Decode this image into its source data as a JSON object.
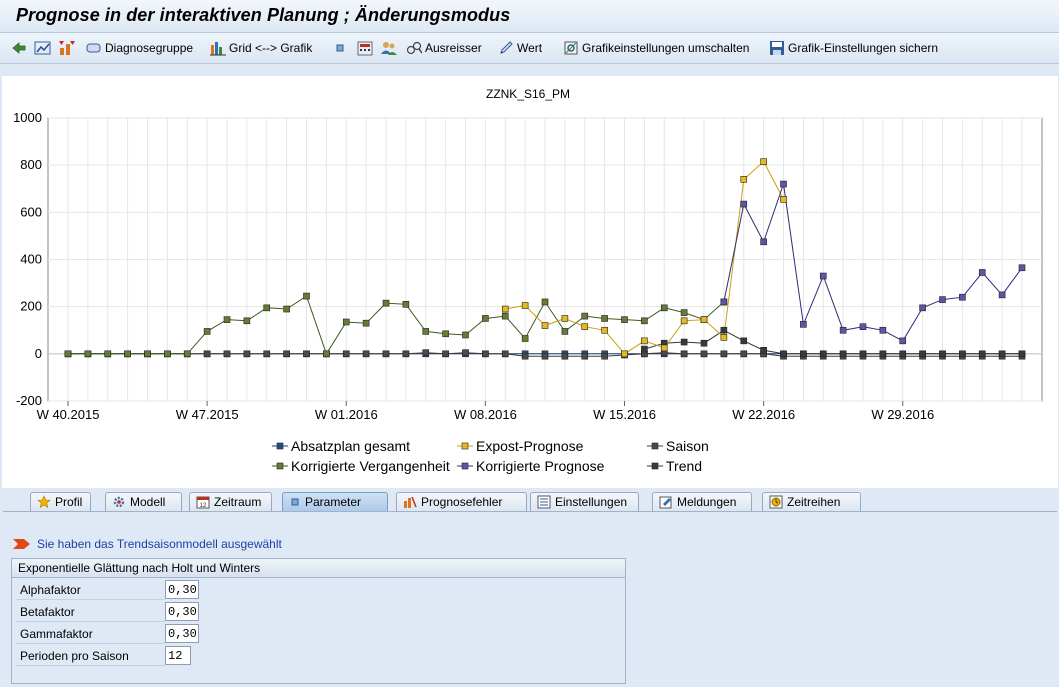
{
  "window": {
    "title": "Prognose in der interaktiven Planung  ; Änderungsmodus"
  },
  "toolbar": {
    "diagnose": "Diagnosegruppe",
    "grid": "Grid <--> Grafik",
    "ausreisser": "Ausreisser",
    "wert": "Wert",
    "umschalten": "Grafikeinstellungen umschalten",
    "sichern": "Grafik-Einstellungen sichern"
  },
  "chart_data": {
    "type": "line",
    "title": "ZZNK_S16_PM",
    "ylim": [
      -200,
      1000
    ],
    "yticks": [
      -200,
      0,
      200,
      400,
      600,
      800,
      1000
    ],
    "xtick_labels": [
      "W 40.2015",
      "W 47.2015",
      "W 01.2016",
      "W 08.2016",
      "W 15.2016",
      "W 22.2016",
      "W 29.2016"
    ],
    "xtick_index": [
      0,
      7,
      14,
      21,
      28,
      35,
      42
    ],
    "n_periods": 49,
    "series": [
      {
        "name": "Absatzplan gesamt",
        "color": "#1f3f7a",
        "marker": "#2b4c8c",
        "values": [
          0,
          0,
          0,
          0,
          0,
          0,
          0,
          0,
          0,
          0,
          0,
          0,
          0,
          0,
          0,
          0,
          0,
          0,
          0,
          0,
          0,
          0,
          0,
          0,
          0,
          0,
          0,
          0,
          0,
          0,
          0,
          0,
          0,
          0,
          0,
          0,
          0,
          0,
          0,
          0,
          0,
          0,
          0,
          0,
          0,
          0,
          0,
          0,
          0
        ]
      },
      {
        "name": "Expost-Prognose",
        "color": "#c9a20c",
        "marker": "#e3bb1e",
        "values": [
          null,
          null,
          null,
          null,
          null,
          null,
          null,
          null,
          null,
          null,
          null,
          null,
          null,
          null,
          null,
          null,
          null,
          null,
          null,
          null,
          null,
          null,
          190,
          205,
          120,
          150,
          115,
          100,
          0,
          55,
          25,
          140,
          145,
          70,
          740,
          815,
          655,
          null,
          null,
          null,
          null,
          null,
          null,
          null,
          null,
          null,
          null,
          null,
          null
        ]
      },
      {
        "name": "Saison",
        "color": "#3c3c3c",
        "marker": "#4a4a4a",
        "values": [
          0,
          0,
          0,
          0,
          0,
          0,
          0,
          0,
          0,
          0,
          0,
          0,
          0,
          0,
          0,
          0,
          0,
          0,
          5,
          0,
          5,
          0,
          0,
          -10,
          -10,
          -10,
          -10,
          -10,
          -5,
          0,
          5,
          0,
          0,
          0,
          0,
          0,
          -10,
          -10,
          -10,
          -10,
          -10,
          -10,
          -10,
          -10,
          -10,
          -10,
          -10,
          -10,
          -10
        ]
      },
      {
        "name": "Korrigierte Vergangenheit",
        "color": "#3d5a1e",
        "marker": "#667b33",
        "values": [
          0,
          0,
          0,
          0,
          0,
          0,
          0,
          95,
          145,
          140,
          195,
          190,
          245,
          0,
          135,
          130,
          215,
          210,
          95,
          85,
          80,
          150,
          160,
          65,
          220,
          95,
          160,
          150,
          145,
          140,
          195,
          175,
          145,
          220,
          null,
          null,
          null,
          null,
          null,
          null,
          null,
          null,
          null,
          null,
          null,
          null,
          null,
          null,
          null
        ]
      },
      {
        "name": "Korrigierte Prognose",
        "color": "#2e2c78",
        "marker": "#5b56a8",
        "values": [
          null,
          null,
          null,
          null,
          null,
          null,
          null,
          null,
          null,
          null,
          null,
          null,
          null,
          null,
          null,
          null,
          null,
          null,
          null,
          null,
          null,
          null,
          null,
          null,
          null,
          null,
          null,
          null,
          null,
          null,
          null,
          null,
          null,
          220,
          635,
          475,
          720,
          125,
          330,
          100,
          115,
          100,
          55,
          195,
          230,
          240,
          345,
          250,
          365
        ]
      },
      {
        "name": "Trend",
        "color": "#333333",
        "marker": "#3a3a3a",
        "values": [
          null,
          null,
          null,
          null,
          null,
          null,
          null,
          null,
          null,
          null,
          null,
          null,
          null,
          null,
          null,
          null,
          null,
          null,
          null,
          null,
          null,
          null,
          null,
          null,
          null,
          null,
          null,
          null,
          null,
          20,
          45,
          50,
          45,
          100,
          55,
          15,
          0,
          0,
          0,
          0,
          0,
          0,
          0,
          0,
          0,
          0,
          0,
          0,
          0
        ]
      }
    ],
    "legend_position": "bottom"
  },
  "tabs": [
    "Profil",
    "Modell",
    "Zeitraum",
    "Parameter",
    "Prognosefehler",
    "Einstellungen",
    "Meldungen",
    "Zeitreihen"
  ],
  "panel": {
    "info": "Sie haben das Trendsaisonmodell ausgewählt",
    "group_title": "Exponentielle Glättung nach Holt und Winters",
    "fields": [
      {
        "label": "Alphafaktor",
        "value": "0,30"
      },
      {
        "label": "Betafaktor",
        "value": "0,30"
      },
      {
        "label": "Gammafaktor",
        "value": "0,30"
      },
      {
        "label": "Perioden pro Saison",
        "value": "12"
      }
    ]
  }
}
